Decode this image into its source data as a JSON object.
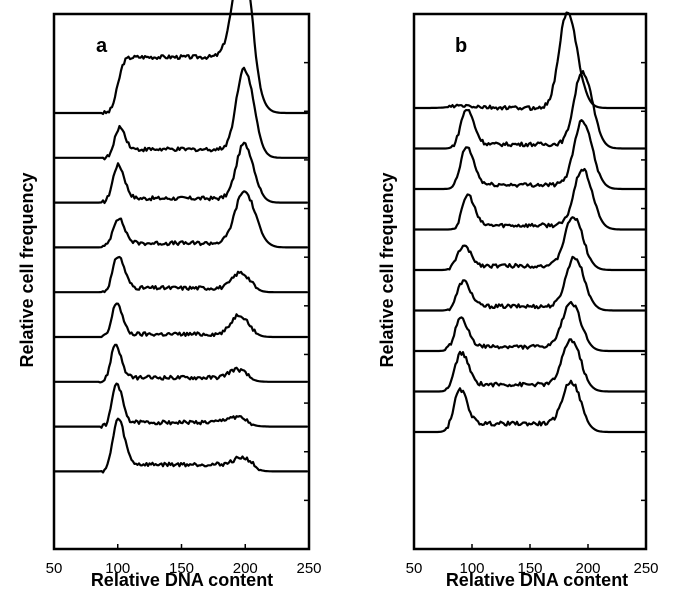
{
  "chart_data": [
    {
      "id": "a",
      "type": "line",
      "panel_label": "a",
      "xlabel": "Relative DNA content",
      "ylabel": "Relative cell frequency",
      "xlim": [
        50,
        250
      ],
      "xticks": [
        50,
        100,
        150,
        200,
        250
      ],
      "y_tick_count": 10,
      "series": [
        {
          "peaks": [
            {
              "x": 100,
              "h": 0.9,
              "w": 3
            },
            {
              "x": 197,
              "h": 6.5,
              "w": 7
            }
          ],
          "base": 0.3,
          "plateau": 4.0,
          "bump": 0
        },
        {
          "peaks": [
            {
              "x": 101,
              "h": 2.0,
              "w": 3.5
            },
            {
              "x": 199,
              "h": 5.8,
              "w": 6
            }
          ],
          "base": 0.3,
          "plateau": 0.6,
          "bump": 0
        },
        {
          "peaks": [
            {
              "x": 100,
              "h": 2.6,
              "w": 4
            },
            {
              "x": 199,
              "h": 3.9,
              "w": 6
            }
          ],
          "base": 0.3,
          "plateau": 0.3,
          "bump": 0
        },
        {
          "peaks": [
            {
              "x": 100,
              "h": 2.0,
              "w": 4
            },
            {
              "x": 199,
              "h": 3.7,
              "w": 7
            }
          ],
          "base": 0.3,
          "plateau": 0.3,
          "bump": 0
        },
        {
          "peaks": [
            {
              "x": 100,
              "h": 2.5,
              "w": 4
            },
            {
              "x": 196,
              "h": 1.1,
              "w": 6
            }
          ],
          "base": 0.3,
          "plateau": 0.3,
          "bump": 0
        },
        {
          "peaks": [
            {
              "x": 99,
              "h": 2.4,
              "w": 3.5
            },
            {
              "x": 195,
              "h": 1.4,
              "w": 6
            }
          ],
          "base": 0.3,
          "plateau": 0.2,
          "bump": 0
        },
        {
          "peaks": [
            {
              "x": 98,
              "h": 2.6,
              "w": 3.5
            },
            {
              "x": 193,
              "h": 0.6,
              "w": 6
            }
          ],
          "base": 0.3,
          "plateau": 0.3,
          "bump": 0
        },
        {
          "peaks": [
            {
              "x": 99,
              "h": 3.0,
              "w": 3.5
            },
            {
              "x": 192,
              "h": 0.4,
              "w": 7
            }
          ],
          "base": 0.3,
          "plateau": 0.3,
          "bump": 0
        },
        {
          "peaks": [
            {
              "x": 100,
              "h": 3.6,
              "w": 4
            },
            {
              "x": 197,
              "h": 0.5,
              "w": 6
            }
          ],
          "base": 0.0,
          "plateau": 0.5,
          "bump": 0
        }
      ]
    },
    {
      "id": "b",
      "type": "line",
      "panel_label": "b",
      "xlabel": "Relative DNA content",
      "ylabel": "Relative cell frequency",
      "xlim": [
        50,
        250
      ],
      "xticks": [
        50,
        100,
        150,
        200,
        250
      ],
      "y_tick_count": 10,
      "series": [
        {
          "peaks": [
            {
              "x": 92,
              "h": 0.15,
              "w": 10
            },
            {
              "x": 182,
              "h": 6.8,
              "w": 7
            }
          ],
          "base": 0.0,
          "plateau": 0.0,
          "bump": 0
        },
        {
          "peaks": [
            {
              "x": 95,
              "h": 2.7,
              "w": 5
            },
            {
              "x": 195,
              "h": 5.2,
              "w": 7
            }
          ],
          "base": 0.3,
          "plateau": 0.3,
          "bump": 0
        },
        {
          "peaks": [
            {
              "x": 95,
              "h": 2.9,
              "w": 5
            },
            {
              "x": 195,
              "h": 4.6,
              "w": 7
            }
          ],
          "base": 0.3,
          "plateau": 0.3,
          "bump": 0
        },
        {
          "peaks": [
            {
              "x": 96,
              "h": 2.4,
              "w": 4.5
            },
            {
              "x": 195,
              "h": 4.0,
              "w": 7
            }
          ],
          "base": 0.3,
          "plateau": 0.3,
          "bump": 0
        },
        {
          "peaks": [
            {
              "x": 92,
              "h": 1.6,
              "w": 5
            },
            {
              "x": 187,
              "h": 3.5,
              "w": 7
            }
          ],
          "base": 0.3,
          "plateau": 0.3,
          "bump": 0
        },
        {
          "peaks": [
            {
              "x": 92,
              "h": 2.0,
              "w": 5
            },
            {
              "x": 188,
              "h": 3.5,
              "w": 7
            }
          ],
          "base": 0.3,
          "plateau": 0.3,
          "bump": 0
        },
        {
          "peaks": [
            {
              "x": 90,
              "h": 2.2,
              "w": 5
            },
            {
              "x": 185,
              "h": 3.2,
              "w": 7
            }
          ],
          "base": 0.5,
          "plateau": 0.3,
          "bump": 0
        },
        {
          "peaks": [
            {
              "x": 90,
              "h": 2.6,
              "w": 5
            },
            {
              "x": 185,
              "h": 3.2,
              "w": 7
            }
          ],
          "base": 0.3,
          "plateau": 0.5,
          "bump": 0
        },
        {
          "peaks": [
            {
              "x": 89,
              "h": 2.8,
              "w": 5
            },
            {
              "x": 185,
              "h": 3.0,
              "w": 7
            }
          ],
          "base": 0.8,
          "plateau": 0.6,
          "bump": 0
        }
      ]
    }
  ]
}
